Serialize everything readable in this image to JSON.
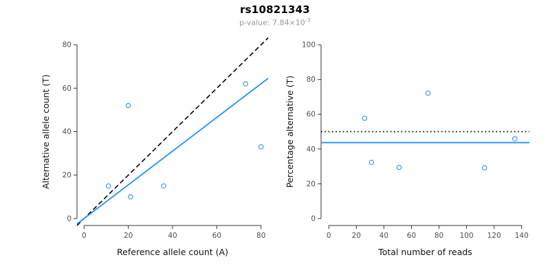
{
  "header": {
    "title": "rs10821343",
    "subtitle_base": "p-value: 7.84×10",
    "subtitle_exponent": "-3"
  },
  "style": {
    "point_color": "#4a98d2",
    "fit_line_color": "#1e90ff",
    "reference_line_color": "#000000",
    "axis_color": "#333333"
  },
  "chart_data": [
    {
      "type": "scatter",
      "title": "",
      "xlabel": "Reference allele count (A)",
      "ylabel": "Alternative allele count (T)",
      "xlim": [
        0,
        80
      ],
      "ylim": [
        0,
        80
      ],
      "xticks": [
        0,
        20,
        40,
        60,
        80
      ],
      "yticks": [
        0,
        20,
        40,
        60,
        80
      ],
      "points": [
        [
          11,
          15
        ],
        [
          20,
          52
        ],
        [
          21,
          10
        ],
        [
          36,
          15
        ],
        [
          73,
          62
        ],
        [
          80,
          33
        ]
      ],
      "lines": [
        {
          "name": "identity-line",
          "kind": "abline",
          "intercept": 0,
          "slope": 1,
          "style": "dashed",
          "color": "#000000",
          "width": 1.6
        },
        {
          "name": "fit-line",
          "kind": "abline",
          "intercept": 0,
          "slope": 0.776,
          "style": "solid",
          "color": "#1e90ff",
          "width": 1.8
        }
      ],
      "legend": "none",
      "grid": false
    },
    {
      "type": "scatter",
      "title": "",
      "xlabel": "Total number of reads",
      "ylabel": "Percentage alternative (T)",
      "xlim": [
        0,
        140
      ],
      "ylim": [
        0,
        100
      ],
      "xticks": [
        0,
        20,
        40,
        60,
        80,
        100,
        120,
        140
      ],
      "yticks": [
        0,
        20,
        40,
        60,
        80,
        100
      ],
      "points": [
        [
          26,
          57.7
        ],
        [
          31,
          32.3
        ],
        [
          51,
          29.4
        ],
        [
          72,
          72.2
        ],
        [
          113,
          29.2
        ],
        [
          135,
          45.9
        ]
      ],
      "lines": [
        {
          "name": "expected-50-line",
          "kind": "hline",
          "y": 50,
          "style": "dotted",
          "color": "#000000",
          "width": 1.8
        },
        {
          "name": "mean-percentage-line",
          "kind": "hline",
          "y": 43.7,
          "style": "solid",
          "color": "#1e90ff",
          "width": 1.8
        }
      ],
      "legend": "none",
      "grid": false
    }
  ]
}
